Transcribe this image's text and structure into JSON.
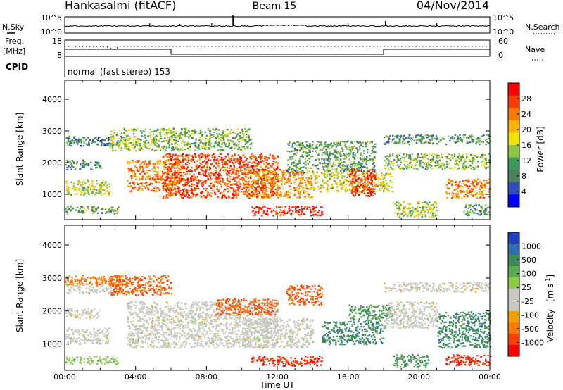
{
  "header": {
    "station": "Hankasalmi (fitACF)",
    "beam": "Beam 15",
    "date": "04/Nov/2014"
  },
  "strips": {
    "nsky_label": "N.Sky",
    "nsky_ticks": [
      "10^5",
      "10^0"
    ],
    "nsearch_label": "N.Search",
    "nsearch_ticks": [
      "10^5",
      "10^0"
    ],
    "freq_label_top": "Freq.",
    "freq_label_bottom": "[MHz]",
    "freq_ticks": [
      "18",
      "8"
    ],
    "nave_label": "Nave",
    "nave_ticks": [
      "60",
      "0"
    ],
    "cpid_label": "CPID",
    "cpid_text": "normal (fast stereo) 153"
  },
  "chart_data": [
    {
      "type": "heatmap",
      "name": "power-panel",
      "ylabel": "Slant Range [km]",
      "xlabel": "",
      "yticks": [
        "1000",
        "2000",
        "3000",
        "4000"
      ],
      "ylim": [
        200,
        4600
      ],
      "xlim_hours": [
        0,
        24
      ],
      "colorbar": {
        "label": "Power [dB]",
        "ticks": [
          "4",
          "8",
          "12",
          "16",
          "20",
          "24",
          "28"
        ],
        "colors": [
          "#0000ff",
          "#2f4fbf",
          "#4c8060",
          "#3a9a5a",
          "#8cc63f",
          "#f2e400",
          "#ffb200",
          "#ff7a00",
          "#ff3c00",
          "#ff0000"
        ]
      },
      "regions": [
        {
          "t0": 0.0,
          "t1": 3.2,
          "r0": 2550,
          "r1": 2850,
          "level": 0.25
        },
        {
          "t0": 0.0,
          "t1": 2.5,
          "r0": 1000,
          "r1": 1500,
          "level": 0.5
        },
        {
          "t0": 0.0,
          "t1": 3.0,
          "r0": 400,
          "r1": 650,
          "level": 0.35
        },
        {
          "t0": 0.0,
          "t1": 2.0,
          "r0": 1800,
          "r1": 2100,
          "level": 0.3
        },
        {
          "t0": 2.5,
          "t1": 6.0,
          "r0": 2400,
          "r1": 3100,
          "level": 0.45
        },
        {
          "t0": 3.5,
          "t1": 6.5,
          "r0": 1100,
          "r1": 2100,
          "level": 0.75
        },
        {
          "t0": 5.5,
          "t1": 12.0,
          "r0": 900,
          "r1": 2300,
          "level": 0.85
        },
        {
          "t0": 6.0,
          "t1": 10.5,
          "r0": 2400,
          "r1": 3100,
          "level": 0.4
        },
        {
          "t0": 10.0,
          "t1": 14.0,
          "r0": 900,
          "r1": 1800,
          "level": 0.7
        },
        {
          "t0": 10.5,
          "t1": 14.5,
          "r0": 350,
          "r1": 650,
          "level": 0.92
        },
        {
          "t0": 12.5,
          "t1": 17.5,
          "r0": 1700,
          "r1": 2700,
          "level": 0.35
        },
        {
          "t0": 14.0,
          "t1": 18.5,
          "r0": 1100,
          "r1": 1700,
          "level": 0.55
        },
        {
          "t0": 16.0,
          "t1": 17.5,
          "r0": 950,
          "r1": 1800,
          "level": 0.9
        },
        {
          "t0": 18.0,
          "t1": 24.0,
          "r0": 1800,
          "r1": 2300,
          "level": 0.4
        },
        {
          "t0": 18.0,
          "t1": 24.0,
          "r0": 2600,
          "r1": 2900,
          "level": 0.3
        },
        {
          "t0": 18.5,
          "t1": 21.0,
          "r0": 300,
          "r1": 800,
          "level": 0.5
        },
        {
          "t0": 21.5,
          "t1": 24.0,
          "r0": 900,
          "r1": 1500,
          "level": 0.75
        },
        {
          "t0": 22.5,
          "t1": 24.0,
          "r0": 350,
          "r1": 700,
          "level": 0.3
        }
      ]
    },
    {
      "type": "heatmap",
      "name": "velocity-panel",
      "ylabel": "Slant Range [km]",
      "xlabel": "Time UT",
      "yticks": [
        "1000",
        "2000",
        "3000",
        "4000"
      ],
      "ylim": [
        200,
        4600
      ],
      "xlim_hours": [
        0,
        24
      ],
      "xticks": [
        "00:00",
        "04:00",
        "08:00",
        "12:00",
        "16:00",
        "20:00",
        "00:00"
      ],
      "colorbar": {
        "label": "Velocity",
        "label_unit": "[m s",
        "label_exp": "-1",
        "label_close": "]",
        "ticks": [
          "1000",
          "500",
          "100",
          "25",
          "-25",
          "-100",
          "-500",
          "-1000"
        ],
        "colors": [
          "#1f3fbf",
          "#2f6faf",
          "#3a8a5a",
          "#5aaa50",
          "#88cc44",
          "#c8c8c0",
          "#c8c8c0",
          "#f0a000",
          "#ff7a00",
          "#ff4000",
          "#ff0000"
        ]
      },
      "regions": [
        {
          "t0": 0.0,
          "t1": 3.2,
          "r0": 2550,
          "r1": 2850,
          "vel": 0.0
        },
        {
          "t0": 0.0,
          "t1": 3.5,
          "r0": 2800,
          "r1": 3100,
          "vel": -0.6
        },
        {
          "t0": 0.0,
          "t1": 2.5,
          "r0": 1000,
          "r1": 1500,
          "vel": 0.0
        },
        {
          "t0": 0.0,
          "t1": 3.0,
          "r0": 400,
          "r1": 650,
          "vel": 0.2
        },
        {
          "t0": 0.0,
          "t1": 2.0,
          "r0": 1800,
          "r1": 2100,
          "vel": 0.0
        },
        {
          "t0": 2.5,
          "t1": 6.0,
          "r0": 2500,
          "r1": 3100,
          "vel": -0.7
        },
        {
          "t0": 3.5,
          "t1": 12.0,
          "r0": 900,
          "r1": 2300,
          "vel": 0.0
        },
        {
          "t0": 8.5,
          "t1": 12.0,
          "r0": 1900,
          "r1": 2400,
          "vel": -0.7
        },
        {
          "t0": 10.0,
          "t1": 14.0,
          "r0": 900,
          "r1": 1800,
          "vel": 0.0
        },
        {
          "t0": 10.5,
          "t1": 14.5,
          "r0": 350,
          "r1": 650,
          "vel": -0.85
        },
        {
          "t0": 12.5,
          "t1": 14.5,
          "r0": 2200,
          "r1": 2800,
          "vel": -0.7
        },
        {
          "t0": 14.5,
          "t1": 18.0,
          "r0": 1000,
          "r1": 1700,
          "vel": 0.6
        },
        {
          "t0": 16.0,
          "t1": 18.5,
          "r0": 1700,
          "r1": 2200,
          "vel": 0.5
        },
        {
          "t0": 18.0,
          "t1": 24.0,
          "r0": 2600,
          "r1": 2900,
          "vel": 0.0
        },
        {
          "t0": 18.0,
          "t1": 21.0,
          "r0": 1500,
          "r1": 2300,
          "vel": 0.0
        },
        {
          "t0": 21.0,
          "t1": 24.0,
          "r0": 900,
          "r1": 2000,
          "vel": 0.6
        },
        {
          "t0": 21.5,
          "t1": 24.0,
          "r0": 350,
          "r1": 700,
          "vel": -0.85
        },
        {
          "t0": 18.5,
          "t1": 20.5,
          "r0": 300,
          "r1": 700,
          "vel": 0.55
        }
      ]
    }
  ]
}
